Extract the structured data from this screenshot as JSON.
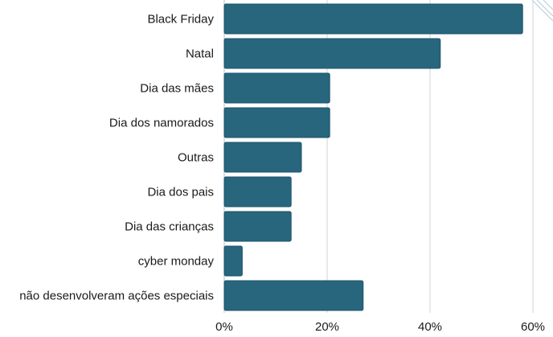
{
  "chart_data": {
    "type": "bar",
    "orientation": "horizontal",
    "categories": [
      "Black Friday",
      "Natal",
      "Dia das mães",
      "Dia dos namorados",
      "Outras",
      "Dia dos pais",
      "Dia das crianças",
      "cyber monday",
      "não desenvolveram ações especiais"
    ],
    "values": [
      58,
      42,
      20.5,
      20.5,
      15,
      13,
      13,
      3.5,
      27
    ],
    "value_unit": "%",
    "xlim": [
      0,
      60
    ],
    "x_ticks": [
      0,
      20,
      40,
      60
    ],
    "x_tick_labels": [
      "0%",
      "20%",
      "40%",
      "60%"
    ],
    "grid": "vertical",
    "colors": {
      "bar": "#27667d",
      "bar_edge": "#1d5469",
      "grid": "#cfd6dc"
    }
  }
}
